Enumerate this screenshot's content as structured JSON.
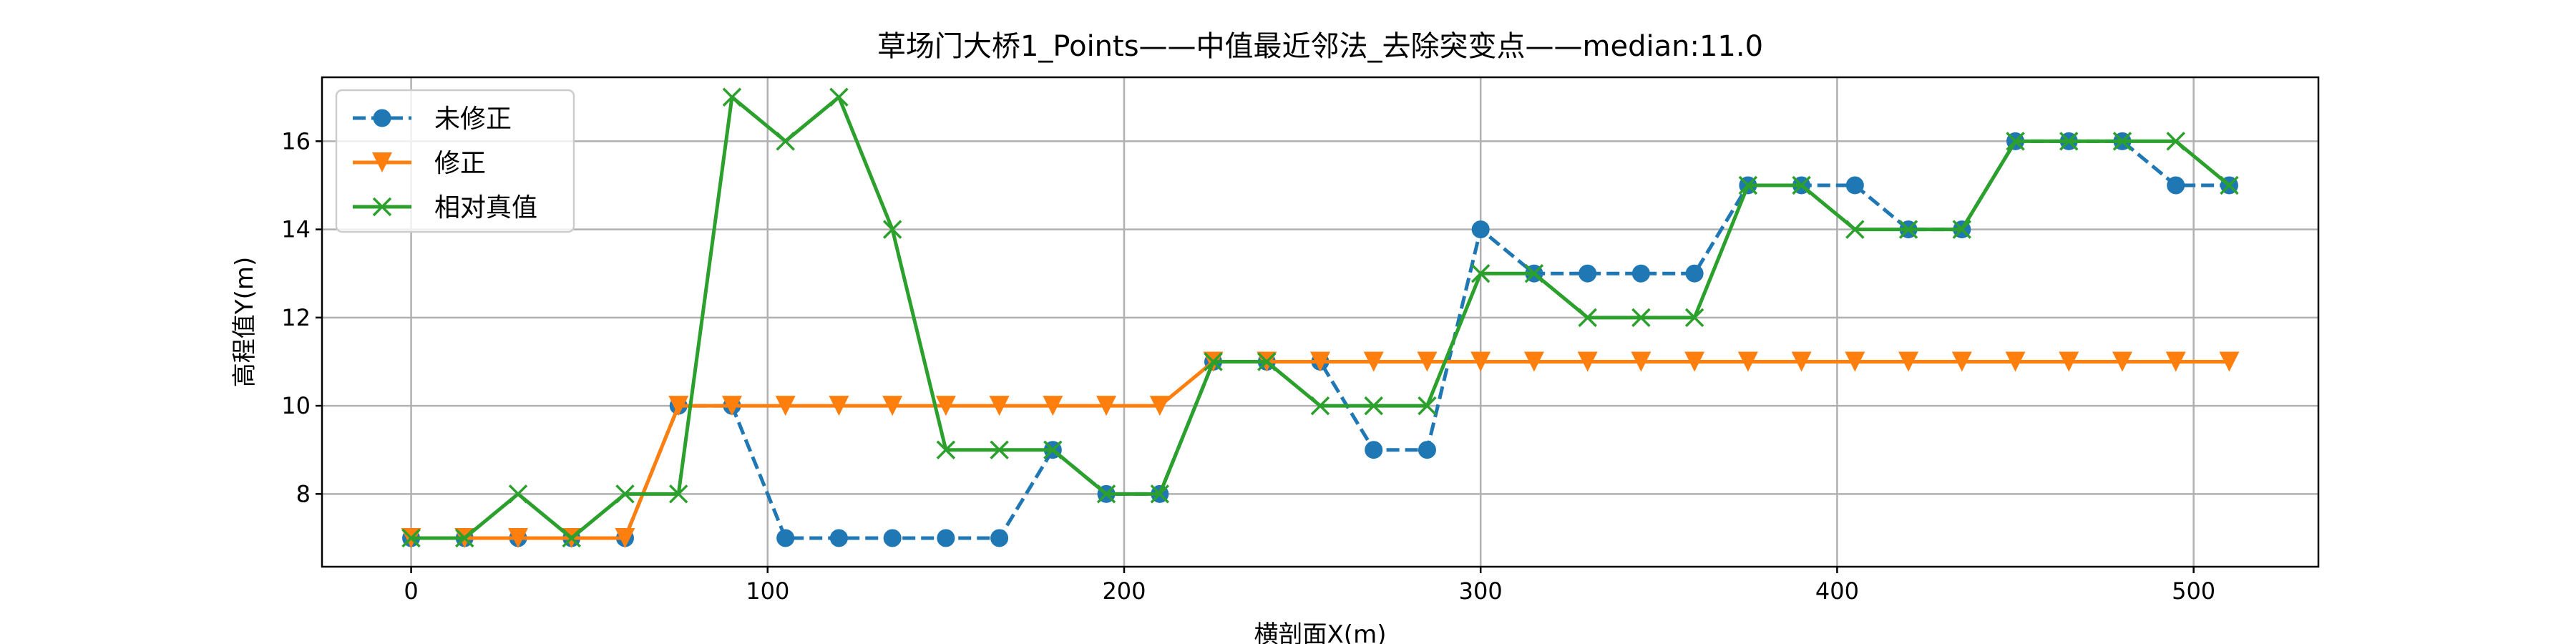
{
  "chart_data": {
    "type": "line",
    "title": "草场门大桥1_Points——中值最近邻法_去除突变点——median:11.0",
    "xlabel": "横剖面X(m)",
    "ylabel": "高程值Y(m)",
    "xlim": [
      -25,
      535
    ],
    "ylim": [
      6.35,
      17.45
    ],
    "xticks": [
      0,
      100,
      200,
      300,
      400,
      500
    ],
    "yticks": [
      8,
      10,
      12,
      14,
      16
    ],
    "grid": true,
    "legend_position": "top-left",
    "x": [
      0,
      15,
      30,
      45,
      60,
      75,
      90,
      105,
      120,
      135,
      150,
      165,
      180,
      195,
      210,
      225,
      240,
      255,
      270,
      285,
      300,
      315,
      330,
      345,
      360,
      375,
      390,
      405,
      420,
      435,
      450,
      465,
      480,
      495,
      510
    ],
    "series": [
      {
        "name": "未修正",
        "color": "#1f77b4",
        "linestyle": "dashed",
        "marker": "circle",
        "values": [
          7,
          7,
          7,
          7,
          7,
          10,
          10,
          7,
          7,
          7,
          7,
          7,
          9,
          8,
          8,
          11,
          11,
          11,
          9,
          9,
          14,
          13,
          13,
          13,
          13,
          15,
          15,
          15,
          14,
          14,
          16,
          16,
          16,
          15,
          15
        ]
      },
      {
        "name": "修正",
        "color": "#ff7f0e",
        "linestyle": "solid",
        "marker": "triangle-down",
        "values": [
          7,
          7,
          7,
          7,
          7,
          10,
          10,
          10,
          10,
          10,
          10,
          10,
          10,
          10,
          10,
          11,
          11,
          11,
          11,
          11,
          11,
          11,
          11,
          11,
          11,
          11,
          11,
          11,
          11,
          11,
          11,
          11,
          11,
          11,
          11
        ]
      },
      {
        "name": "相对真值",
        "color": "#2ca02c",
        "linestyle": "solid",
        "marker": "x",
        "values": [
          7,
          7,
          8,
          7,
          8,
          8,
          17,
          16,
          17,
          14,
          9,
          9,
          9,
          8,
          8,
          11,
          11,
          10,
          10,
          10,
          13,
          13,
          12,
          12,
          12,
          15,
          15,
          14,
          14,
          14,
          16,
          16,
          16,
          16,
          15
        ]
      }
    ]
  }
}
